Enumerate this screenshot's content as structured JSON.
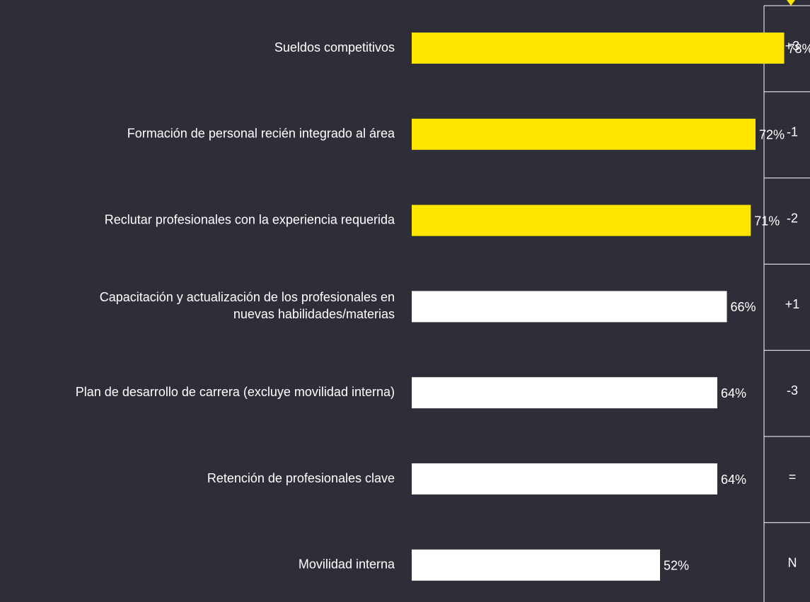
{
  "chart_data": {
    "type": "hbar",
    "categories": [
      [
        "Sueldos competitivos"
      ],
      [
        "Formación de personal recién integrado al área"
      ],
      [
        "Reclutar profesionales con la experiencia requerida"
      ],
      [
        "Capacitación y actualización de los profesionales en",
        "nuevas habilidades/materias"
      ],
      [
        "Plan de desarrollo de carrera (excluye movilidad interna)"
      ],
      [
        "Retención de profesionales clave"
      ],
      [
        "Movilidad interna"
      ]
    ],
    "values": [
      78,
      72,
      71,
      66,
      64,
      64,
      52
    ],
    "value_labels": [
      "78%",
      "72%",
      "71%",
      "66%",
      "64%",
      "64%",
      "52%"
    ],
    "colors": [
      "#ffe600",
      "#ffe600",
      "#ffe600",
      "#ffffff",
      "#ffffff",
      "#ffffff",
      "#ffffff"
    ],
    "changes": [
      "+3",
      "-1",
      "-2",
      "+1",
      "-3",
      "=",
      "N"
    ],
    "xlim": [
      0,
      100
    ]
  }
}
